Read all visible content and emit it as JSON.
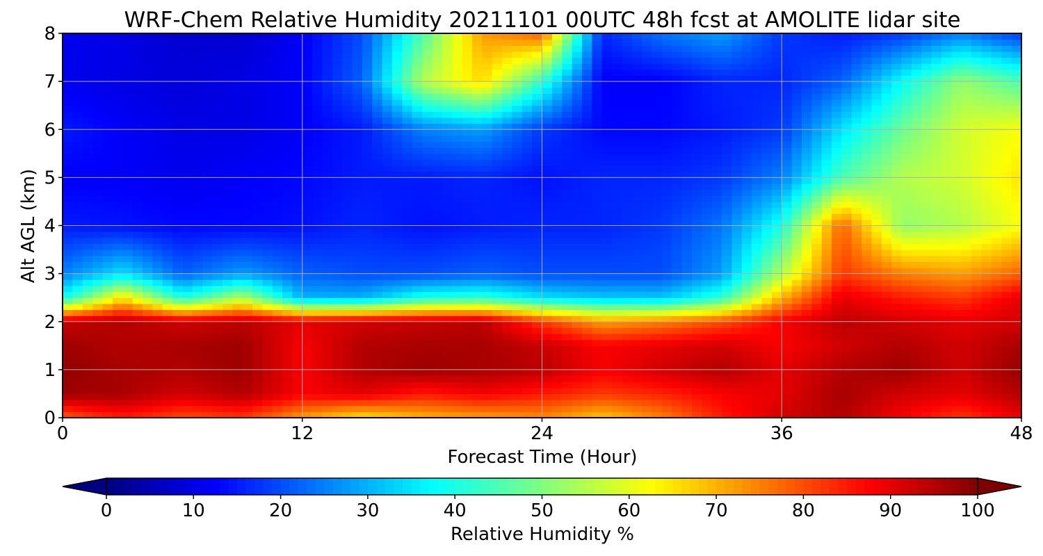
{
  "chart_data": {
    "type": "heatmap",
    "title": "WRF-Chem Relative Humidity 20211101 00UTC 48h fcst at AMOLITE lidar site",
    "xlabel": "Forecast Time (Hour)",
    "ylabel": "Alt AGL (km)",
    "xlim": [
      0,
      48
    ],
    "ylim": [
      0,
      8
    ],
    "xticks": [
      0,
      12,
      24,
      36,
      48
    ],
    "yticks": [
      0,
      1,
      2,
      3,
      4,
      5,
      6,
      7,
      8
    ],
    "grid": true,
    "colormap": "jet",
    "colorbar": {
      "label": "Relative Humidity %",
      "orientation": "horizontal",
      "range": [
        0,
        100
      ],
      "ticks": [
        0,
        10,
        20,
        30,
        40,
        50,
        60,
        70,
        80,
        90,
        100
      ],
      "extend": "both"
    },
    "x": [
      0,
      3,
      6,
      9,
      12,
      15,
      18,
      21,
      24,
      27,
      30,
      33,
      36,
      39,
      42,
      45,
      48
    ],
    "y": [
      0,
      0.5,
      1,
      1.5,
      2,
      2.5,
      3,
      4,
      5,
      6,
      7,
      8
    ],
    "z": [
      [
        78,
        85,
        80,
        82,
        72,
        65,
        70,
        72,
        74,
        68,
        75,
        85,
        92,
        95,
        88,
        82,
        90
      ],
      [
        97,
        96,
        92,
        95,
        88,
        90,
        85,
        88,
        85,
        82,
        84,
        88,
        90,
        96,
        92,
        90,
        95
      ],
      [
        98,
        96,
        95,
        97,
        88,
        95,
        97,
        96,
        94,
        88,
        92,
        95,
        90,
        95,
        97,
        92,
        98
      ],
      [
        97,
        95,
        96,
        97,
        88,
        95,
        96,
        96,
        93,
        88,
        90,
        92,
        88,
        92,
        95,
        92,
        96
      ],
      [
        93,
        95,
        92,
        94,
        90,
        92,
        93,
        94,
        82,
        72,
        75,
        80,
        88,
        94,
        92,
        90,
        92
      ],
      [
        38,
        65,
        40,
        55,
        30,
        30,
        40,
        42,
        35,
        32,
        32,
        42,
        70,
        90,
        85,
        82,
        90
      ],
      [
        25,
        35,
        22,
        28,
        22,
        20,
        20,
        22,
        20,
        20,
        20,
        28,
        55,
        82,
        75,
        72,
        78
      ],
      [
        15,
        14,
        13,
        13,
        14,
        16,
        14,
        15,
        16,
        16,
        18,
        24,
        40,
        78,
        52,
        55,
        62
      ],
      [
        12,
        12,
        11,
        12,
        13,
        15,
        15,
        16,
        14,
        16,
        16,
        18,
        25,
        45,
        55,
        58,
        65
      ],
      [
        15,
        12,
        10,
        10,
        12,
        15,
        25,
        28,
        18,
        13,
        13,
        15,
        18,
        35,
        48,
        58,
        62
      ],
      [
        11,
        10,
        9,
        10,
        12,
        22,
        55,
        66,
        42,
        12,
        12,
        16,
        16,
        22,
        38,
        52,
        45
      ],
      [
        11,
        10,
        8,
        8,
        12,
        20,
        45,
        72,
        78,
        16,
        24,
        28,
        18,
        15,
        18,
        25,
        18
      ]
    ]
  }
}
